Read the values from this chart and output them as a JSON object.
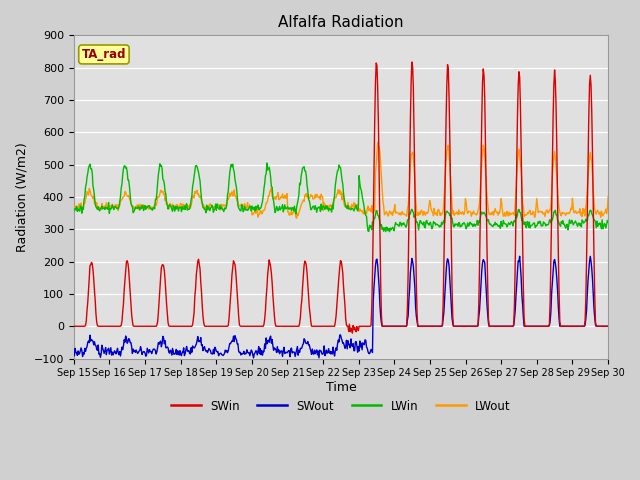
{
  "title": "Alfalfa Radiation",
  "xlabel": "Time",
  "ylabel": "Radiation (W/m2)",
  "ylim": [
    -100,
    900
  ],
  "yticks": [
    -100,
    0,
    100,
    200,
    300,
    400,
    500,
    600,
    700,
    800,
    900
  ],
  "fig_bg_color": "#d0d0d0",
  "plot_bg_color": "#e0e0e0",
  "grid_color": "#ffffff",
  "colors": {
    "SWin": "#dd0000",
    "SWout": "#0000cc",
    "LWin": "#00bb00",
    "LWout": "#ff9900"
  },
  "legend_label": "TA_rad",
  "legend_label_color": "#990000",
  "legend_label_bg": "#ffff99",
  "legend_label_border": "#999900",
  "n_days": 15,
  "start_day": 15,
  "figsize": [
    6.4,
    4.8
  ],
  "dpi": 100
}
